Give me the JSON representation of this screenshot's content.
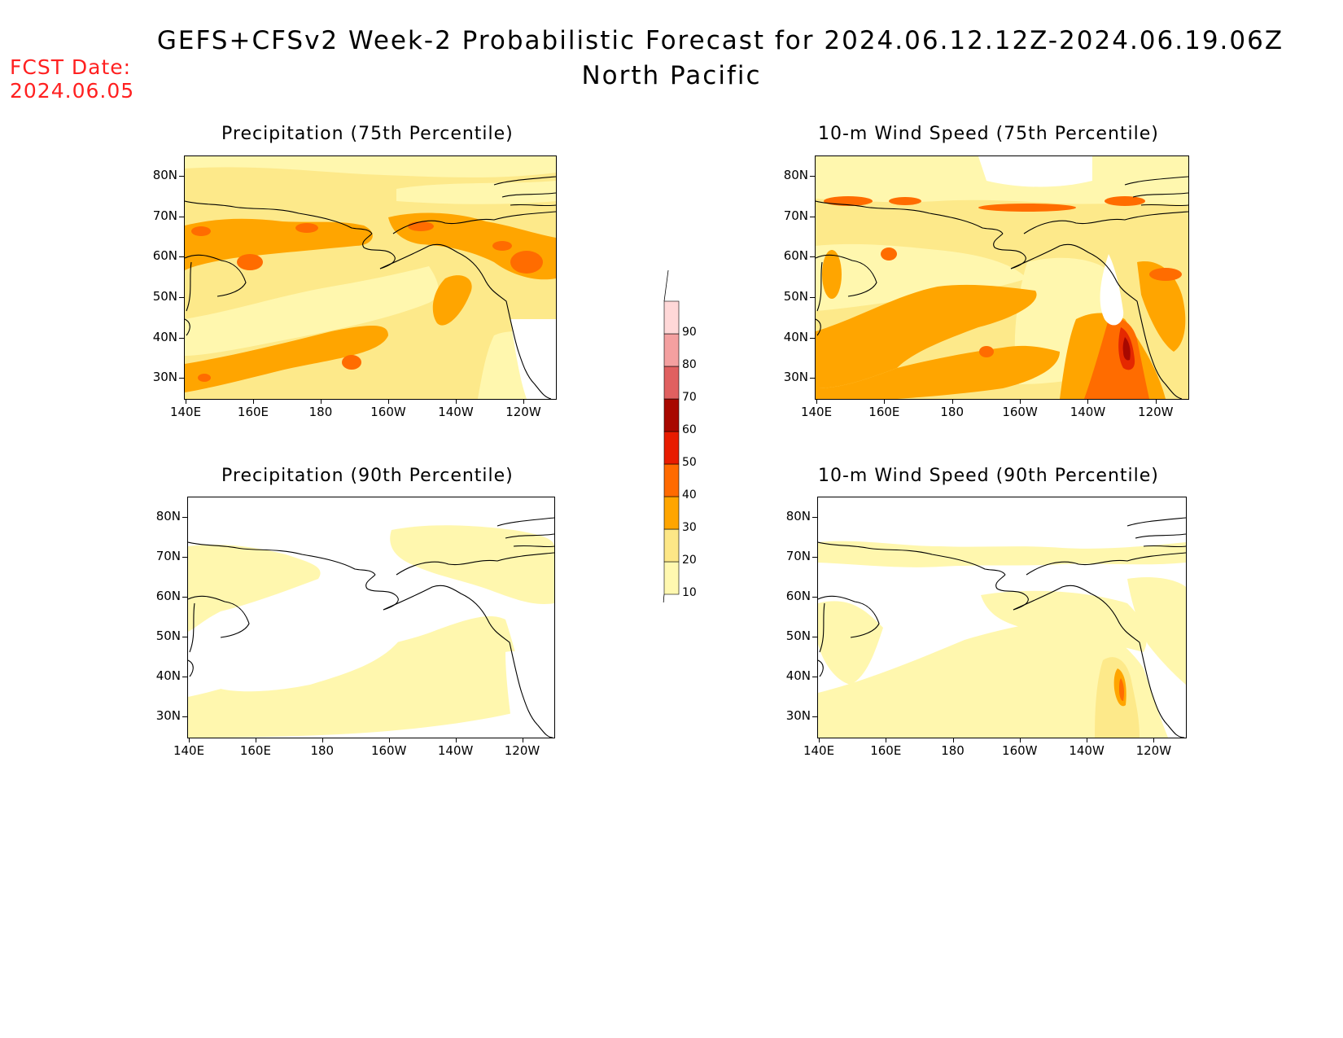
{
  "header": {
    "title": "GEFS+CFSv2 Week-2 Probabilistic Forecast for 2024.06.12.12Z-2024.06.19.06Z",
    "subtitle": "North Pacific",
    "fcst_label": "FCST Date:",
    "fcst_value": "2024.06.05"
  },
  "panels": [
    {
      "id": "precip75",
      "title": "Precipitation (75th Percentile)"
    },
    {
      "id": "wind75",
      "title": "10-m Wind Speed (75th Percentile)"
    },
    {
      "id": "precip90",
      "title": "Precipitation (90th Percentile)"
    },
    {
      "id": "wind90",
      "title": "10-m Wind Speed (90th Percentile)"
    }
  ],
  "axes": {
    "lat_ticks": [
      "80N",
      "70N",
      "60N",
      "50N",
      "40N",
      "30N"
    ],
    "lon_ticks": [
      "140E",
      "160E",
      "180",
      "160W",
      "140W",
      "120W"
    ]
  },
  "colorbar": {
    "levels": [
      "10",
      "20",
      "30",
      "40",
      "50",
      "60",
      "70",
      "80",
      "90"
    ],
    "colors": [
      "#fff8b0",
      "#fde787",
      "#ffa500",
      "#ff6a00",
      "#e81c00",
      "#a80800",
      "#e06060",
      "#f4a0a0",
      "#ffd8d8",
      "#ffffff"
    ]
  },
  "palette": {
    "p10": "#fff7ae",
    "p20": "#fde98a",
    "p30": "#ffa500",
    "p40": "#ff6c00",
    "p50": "#e52800",
    "p60": "#a80800",
    "fcst_red": "#ff2020"
  }
}
